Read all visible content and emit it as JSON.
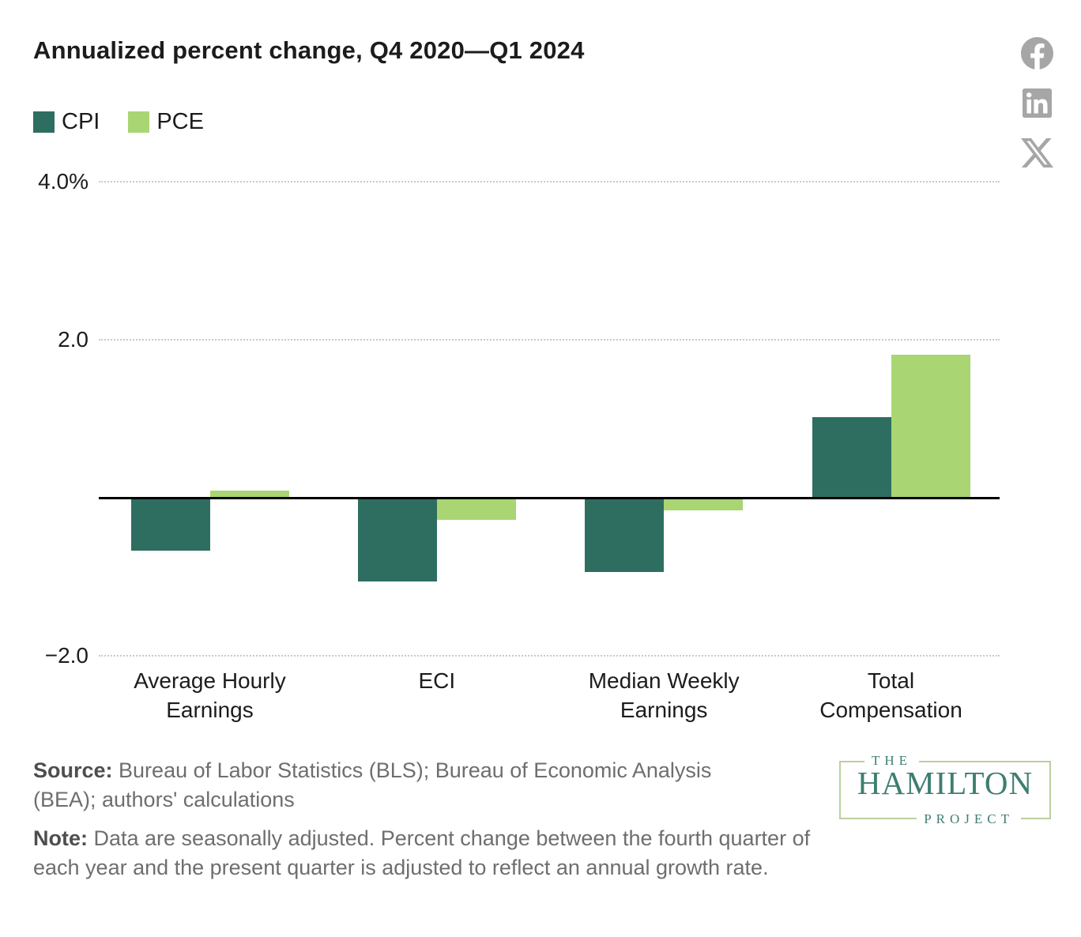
{
  "header": {
    "title": "Annualized percent change, Q4 2020—Q1 2024"
  },
  "social": {
    "color": "#a6a6a6",
    "icons": [
      {
        "name": "facebook"
      },
      {
        "name": "linkedin"
      },
      {
        "name": "x"
      }
    ]
  },
  "legend": [
    {
      "label": "CPI",
      "color": "#2e6e61"
    },
    {
      "label": "PCE",
      "color": "#a9d573"
    }
  ],
  "chart_data": {
    "type": "bar",
    "title": "Annualized percent change, Q4 2020—Q1 2024",
    "categories": [
      "Average Hourly Earnings",
      "ECI",
      "Median Weekly Earnings",
      "Total Compensation"
    ],
    "category_lines": [
      [
        "Average Hourly",
        "Earnings"
      ],
      [
        "ECI"
      ],
      [
        "Median Weekly",
        "Earnings"
      ],
      [
        "Total",
        "Compensation"
      ]
    ],
    "series": [
      {
        "name": "CPI",
        "color": "#2e6e61",
        "values": [
          -0.67,
          -1.06,
          -0.94,
          1.02
        ]
      },
      {
        "name": "PCE",
        "color": "#a9d573",
        "values": [
          0.09,
          -0.28,
          -0.16,
          1.81
        ]
      }
    ],
    "ylabel": "Annualized percent change",
    "ylim": [
      -2.0,
      4.0
    ],
    "yticks": [
      {
        "value": 4.0,
        "label": "4.0%"
      },
      {
        "value": 2.0,
        "label": "2.0"
      },
      {
        "value": -2.0,
        "label": "−2.0"
      }
    ],
    "zero_line": true,
    "grid": "dotted-horizontal",
    "legend_position": "top-left"
  },
  "footer": {
    "source_label": "Source:",
    "source_text": " Bureau of Labor Statistics (BLS); Bureau of Economic Analysis (BEA); authors' calculations",
    "note_label": "Note:",
    "note_text": " Data are seasonally adjusted. Percent change between the fourth quarter of each year and the present quarter is adjusted to reflect an annual growth rate."
  },
  "logo": {
    "line1": "THE",
    "line2": "HAMILTON",
    "line3": "PROJECT",
    "color": "#3e7e71",
    "border_color": "#bccf9e"
  }
}
